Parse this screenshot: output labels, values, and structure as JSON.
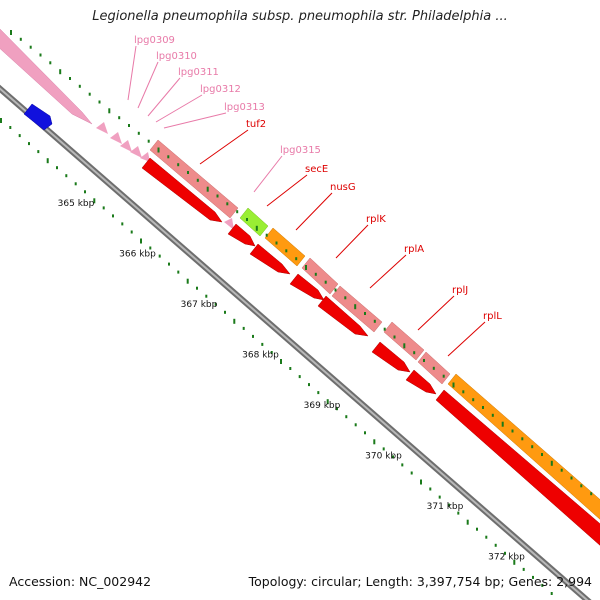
{
  "title": "Legionella pneumophila subsp. pneumophila str. Philadelphia ...",
  "accession_text": "Accession: NC_002942",
  "summary_text": "Topology: circular; Length: 3,397,754 bp; Genes: 2,994",
  "colors": {
    "pink_label": "#e87aa8",
    "red_label": "#dd0000",
    "backbone": "#888888",
    "tick_green": "#1a7a1a",
    "gene_red": "#ee0000",
    "gene_pink": "#ee99bb",
    "gene_salmon": "#e88080",
    "gene_orange": "#ff8c00",
    "gene_lime": "#99ee33",
    "gene_blue": "#1111dd"
  },
  "scale_ticks": [
    "365 kbp",
    "366 kbp",
    "367 kbp",
    "368 kbp",
    "369 kbp",
    "370 kbp",
    "371 kbp",
    "372 kbp"
  ],
  "gene_labels": [
    {
      "name": "lpg0309",
      "color": "pink"
    },
    {
      "name": "lpg0310",
      "color": "pink"
    },
    {
      "name": "lpg0311",
      "color": "pink"
    },
    {
      "name": "lpg0312",
      "color": "pink"
    },
    {
      "name": "lpg0313",
      "color": "pink"
    },
    {
      "name": "tuf2",
      "color": "red"
    },
    {
      "name": "lpg0315",
      "color": "pink"
    },
    {
      "name": "secE",
      "color": "red"
    },
    {
      "name": "nusG",
      "color": "red"
    },
    {
      "name": "rplK",
      "color": "red"
    },
    {
      "name": "rplA",
      "color": "red"
    },
    {
      "name": "rplJ",
      "color": "red"
    },
    {
      "name": "rplL",
      "color": "red"
    }
  ]
}
